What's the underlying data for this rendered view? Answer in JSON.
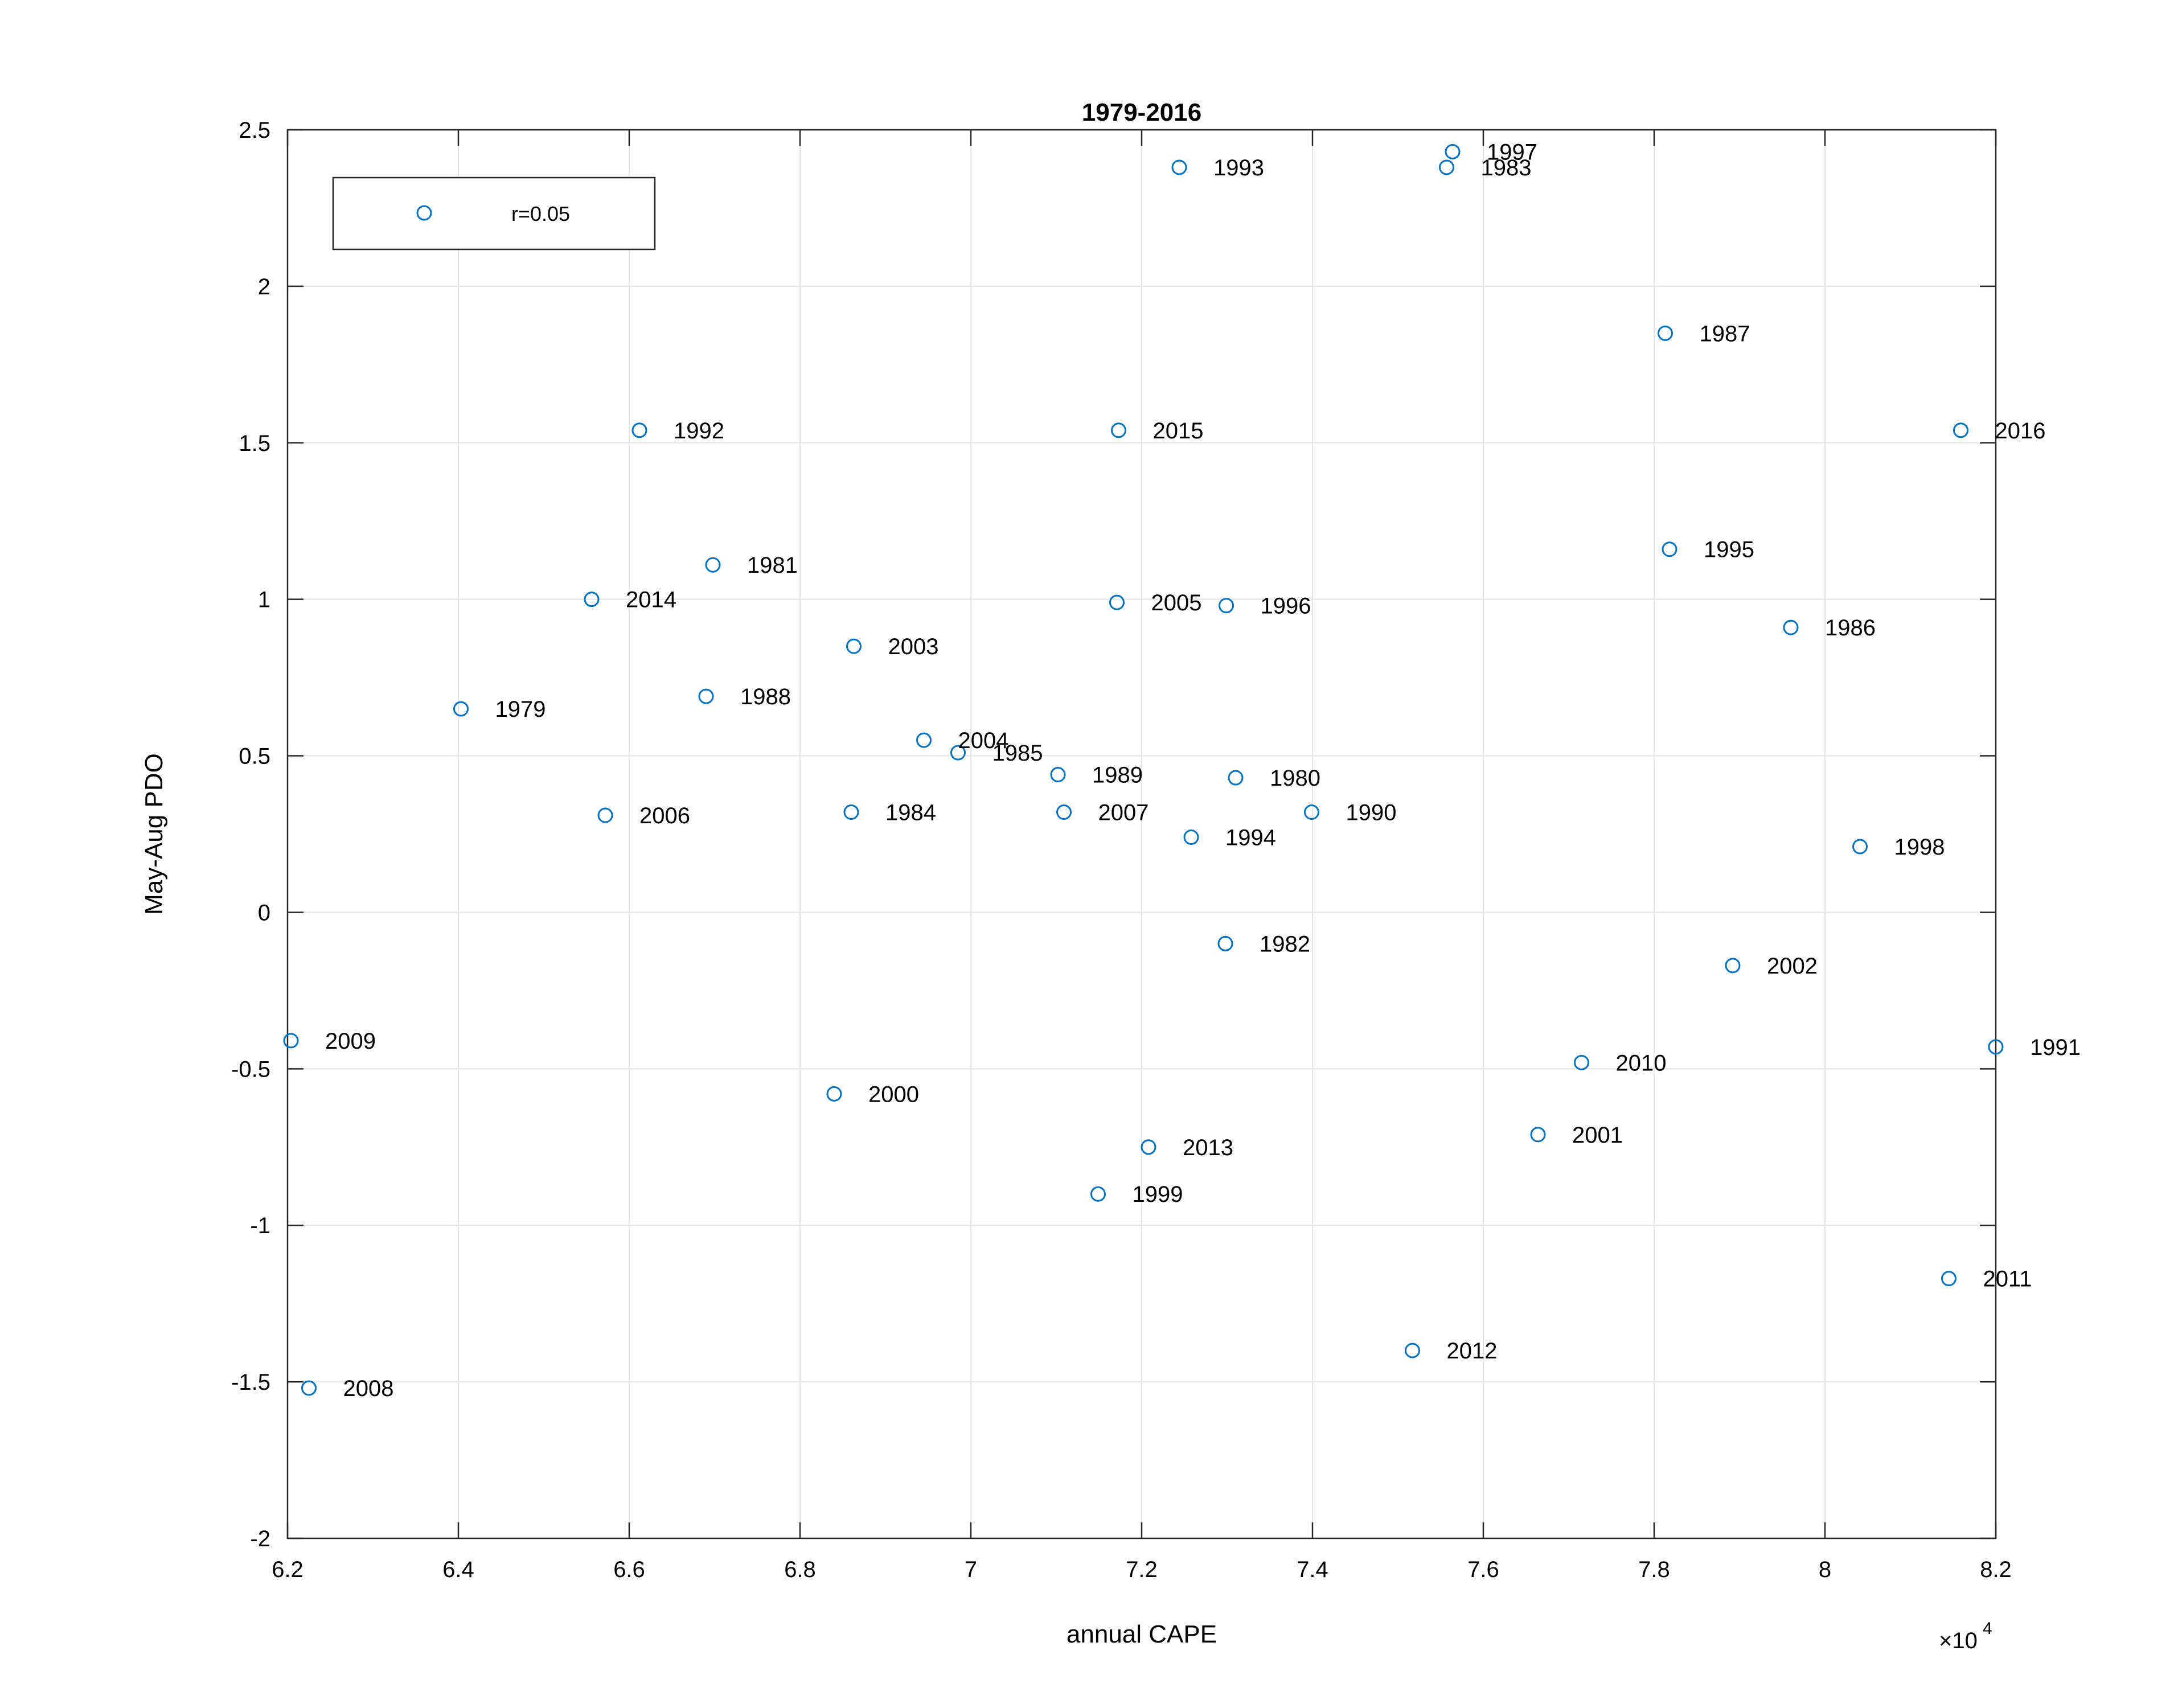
{
  "chart_data": {
    "type": "scatter",
    "title": "1979-2016",
    "xlabel": "annual CAPE",
    "ylabel": "May-Aug PDO",
    "x_exponent_label": "×10",
    "x_exponent_power": "4",
    "xlim": [
      62000,
      82000
    ],
    "ylim": [
      -2,
      2.5
    ],
    "xticks": [
      62000,
      64000,
      66000,
      68000,
      70000,
      72000,
      74000,
      76000,
      78000,
      80000,
      82000
    ],
    "xtick_labels": [
      "6.2",
      "6.4",
      "6.6",
      "6.8",
      "7",
      "7.2",
      "7.4",
      "7.6",
      "7.8",
      "8",
      "8.2"
    ],
    "yticks": [
      -2,
      -1.5,
      -1,
      -0.5,
      0,
      0.5,
      1,
      1.5,
      2,
      2.5
    ],
    "ytick_labels": [
      "-2",
      "-1.5",
      "-1",
      "-0.5",
      "0",
      "0.5",
      "1",
      "1.5",
      "2",
      "2.5"
    ],
    "grid": true,
    "legend": {
      "position": "top-left",
      "entries": [
        "r=0.05"
      ]
    },
    "marker_color": "#0072BD",
    "points": [
      {
        "year": "1979",
        "x": 64030,
        "y": 0.65
      },
      {
        "year": "1980",
        "x": 73100,
        "y": 0.43
      },
      {
        "year": "1981",
        "x": 66980,
        "y": 1.11
      },
      {
        "year": "1982",
        "x": 72980,
        "y": -0.1
      },
      {
        "year": "1983",
        "x": 75570,
        "y": 2.38
      },
      {
        "year": "1984",
        "x": 68600,
        "y": 0.32
      },
      {
        "year": "1985",
        "x": 69850,
        "y": 0.51
      },
      {
        "year": "1986",
        "x": 79600,
        "y": 0.91
      },
      {
        "year": "1987",
        "x": 78130,
        "y": 1.85
      },
      {
        "year": "1988",
        "x": 66900,
        "y": 0.69
      },
      {
        "year": "1989",
        "x": 71020,
        "y": 0.44
      },
      {
        "year": "1990",
        "x": 73990,
        "y": 0.32
      },
      {
        "year": "1991",
        "x": 82000,
        "y": -0.43
      },
      {
        "year": "1992",
        "x": 66120,
        "y": 1.54
      },
      {
        "year": "1993",
        "x": 72440,
        "y": 2.38
      },
      {
        "year": "1994",
        "x": 72580,
        "y": 0.24
      },
      {
        "year": "1995",
        "x": 78180,
        "y": 1.16
      },
      {
        "year": "1996",
        "x": 72990,
        "y": 0.98
      },
      {
        "year": "1997",
        "x": 75640,
        "y": 2.43
      },
      {
        "year": "1998",
        "x": 80410,
        "y": 0.21
      },
      {
        "year": "1999",
        "x": 71490,
        "y": -0.9
      },
      {
        "year": "2000",
        "x": 68400,
        "y": -0.58
      },
      {
        "year": "2001",
        "x": 76640,
        "y": -0.71
      },
      {
        "year": "2002",
        "x": 78920,
        "y": -0.17
      },
      {
        "year": "2003",
        "x": 68630,
        "y": 0.85
      },
      {
        "year": "2004",
        "x": 69450,
        "y": 0.55
      },
      {
        "year": "2005",
        "x": 71710,
        "y": 0.99
      },
      {
        "year": "2006",
        "x": 65720,
        "y": 0.31
      },
      {
        "year": "2007",
        "x": 71090,
        "y": 0.32
      },
      {
        "year": "2008",
        "x": 62250,
        "y": -1.52
      },
      {
        "year": "2009",
        "x": 62040,
        "y": -0.41
      },
      {
        "year": "2010",
        "x": 77150,
        "y": -0.48
      },
      {
        "year": "2011",
        "x": 81450,
        "y": -1.17
      },
      {
        "year": "2012",
        "x": 75170,
        "y": -1.4
      },
      {
        "year": "2013",
        "x": 72080,
        "y": -0.75
      },
      {
        "year": "2014",
        "x": 65560,
        "y": 1.0
      },
      {
        "year": "2015",
        "x": 71730,
        "y": 1.54
      },
      {
        "year": "2016",
        "x": 81590,
        "y": 1.54
      }
    ]
  }
}
